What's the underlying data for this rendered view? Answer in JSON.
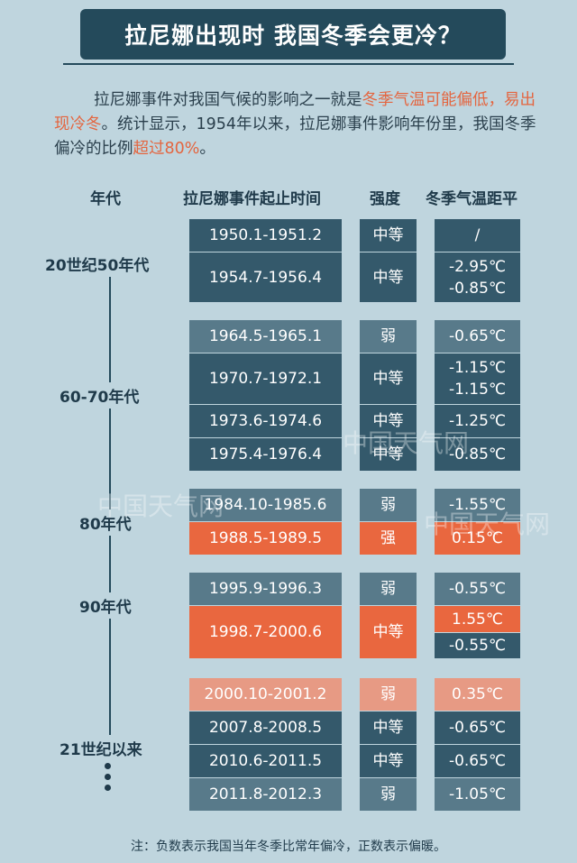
{
  "title": "拉尼娜出现时 我国冬季会更冷？",
  "intro": {
    "p1": "拉尼娜事件对我国气候的影响之一就是",
    "h1": "冬季气温可能偏低，易出现冷冬",
    "p2": "。统计显示，1954年以来，拉尼娜事件影响年份里，我国冬季偏冷的比例",
    "h2": "超过80%",
    "p3": "。"
  },
  "headers": {
    "era": "年代",
    "period": "拉尼娜事件起止时间",
    "strength": "强度",
    "anomaly": "冬季气温距平"
  },
  "eras": [
    "20世纪50年代",
    "60-70年代",
    "80年代",
    "90年代",
    "21世纪以来"
  ],
  "rows": [
    {
      "period": "1950.1-1951.2",
      "strength": "中等",
      "anomaly": "/"
    },
    {
      "period": "1954.7-1956.4",
      "strength": "中等",
      "anomaly": [
        "-2.95℃",
        "-0.85℃"
      ]
    },
    {
      "period": "1964.5-1965.1",
      "strength": "弱",
      "anomaly": "-0.65℃"
    },
    {
      "period": "1970.7-1972.1",
      "strength": "中等",
      "anomaly": [
        "-1.15℃",
        "-1.15℃"
      ]
    },
    {
      "period": "1973.6-1974.6",
      "strength": "中等",
      "anomaly": "-1.25℃"
    },
    {
      "period": "1975.4-1976.4",
      "strength": "中等",
      "anomaly": "-0.85℃"
    },
    {
      "period": "1984.10-1985.6",
      "strength": "弱",
      "anomaly": "-1.55℃"
    },
    {
      "period": "1988.5-1989.5",
      "strength": "强",
      "anomaly": "0.15℃"
    },
    {
      "period": "1995.9-1996.3",
      "strength": "弱",
      "anomaly": "-0.55℃"
    },
    {
      "period": "1998.7-2000.6",
      "strength": "中等",
      "anomaly": [
        "1.55℃",
        "-0.55℃"
      ]
    },
    {
      "period": "2000.10-2001.2",
      "strength": "弱",
      "anomaly": "0.35℃"
    },
    {
      "period": "2007.8-2008.5",
      "strength": "中等",
      "anomaly": "-0.65℃"
    },
    {
      "period": "2010.6-2011.5",
      "strength": "中等",
      "anomaly": "-0.65℃"
    },
    {
      "period": "2011.8-2012.3",
      "strength": "弱",
      "anomaly": "-1.05℃"
    }
  ],
  "note": "注：负数表示我国当年冬季比常年偏冷，正数表示偏暖。",
  "watermark": "中国天气网",
  "colors": {
    "dark": "#34596b",
    "mid": "#587a8a",
    "orange": "#e9673f",
    "salmon": "#e79a84",
    "background": "#bfd5de",
    "title_bg": "#244a5b"
  }
}
